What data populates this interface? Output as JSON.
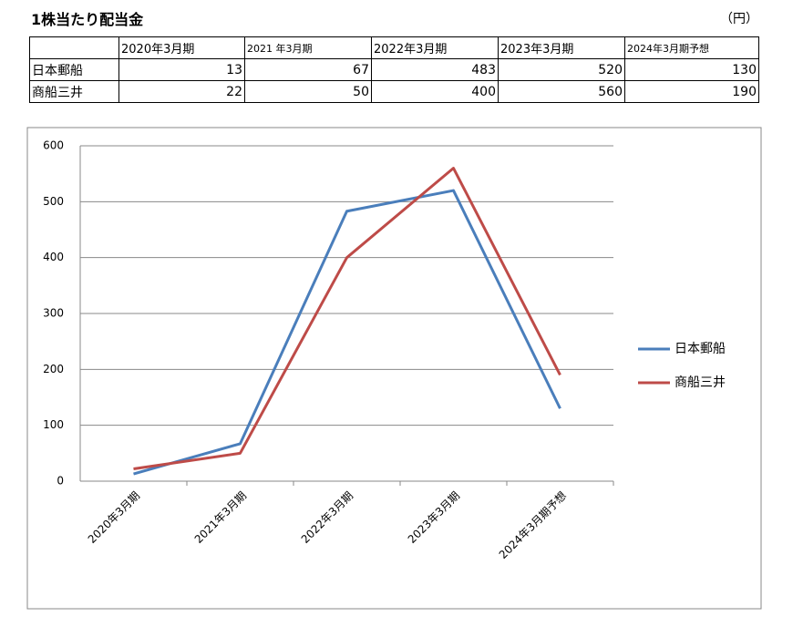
{
  "title": "1株当たり配当金",
  "unit": "（円）",
  "table": {
    "header": [
      "2020年3月期",
      "2021 年3月期",
      "2022年3月期",
      "2023年3月期",
      "2024年3月期予想"
    ],
    "rows": [
      [
        "日本郵船",
        13,
        67,
        483,
        520,
        130
      ],
      [
        "商船三井",
        22,
        50,
        400,
        560,
        190
      ]
    ]
  },
  "chart_data": {
    "type": "line",
    "categories": [
      "2020年3月期",
      "2021年3月期",
      "2022年3月期",
      "2023年3月期",
      "2024年3月期予想"
    ],
    "series": [
      {
        "name": "日本郵船",
        "color": "#4a7ebb",
        "values": [
          13,
          67,
          483,
          520,
          130
        ]
      },
      {
        "name": "商船三井",
        "color": "#be4b48",
        "values": [
          22,
          50,
          400,
          560,
          190
        ]
      }
    ],
    "ylim": [
      0,
      600
    ],
    "yticks": [
      0,
      100,
      200,
      300,
      400,
      500,
      600
    ],
    "grid": true,
    "legend": "right"
  }
}
